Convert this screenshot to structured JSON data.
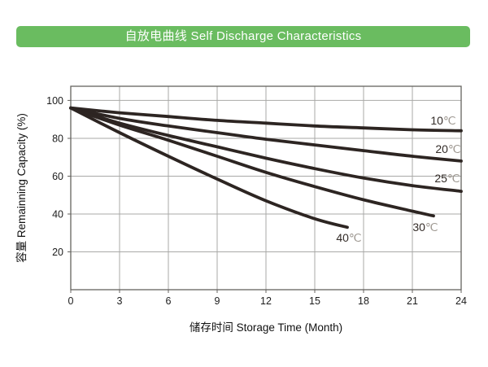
{
  "header": {
    "title": "自放电曲线 Self Discharge Characteristics"
  },
  "chart_data": {
    "type": "line",
    "title": "自放电曲线 Self Discharge Characteristics",
    "xlabel": "储存时间 Storage Time (Month)",
    "ylabel": "容量 Remainning Capacity (%)",
    "xlim": [
      0,
      24
    ],
    "ylim": [
      0,
      107.5
    ],
    "x_ticks": [
      0,
      3,
      6,
      9,
      12,
      15,
      18,
      21,
      24
    ],
    "y_ticks": [
      20,
      40,
      60,
      80,
      100
    ],
    "grid": true,
    "legend_position": "inline-end-labels",
    "colors": {
      "header_bg": "#6abc60",
      "header_text": "#ffffff",
      "curve": "#2d2522",
      "grid": "#a9a9a7",
      "frame": "#65635f",
      "tick_text": "#1c1c1c",
      "axis_title_text": "#111111",
      "label_main": "#332c28",
      "label_unit": "#9c968f"
    },
    "series": [
      {
        "name": "10℃",
        "x": [
          0,
          3,
          6,
          9,
          12,
          15,
          18,
          21,
          24
        ],
        "y": [
          96,
          93.5,
          91.5,
          89.5,
          88,
          86.5,
          85.5,
          84.5,
          84
        ],
        "label_at": [
          22.9,
          89.4
        ]
      },
      {
        "name": "20℃",
        "x": [
          0,
          3,
          6,
          9,
          12,
          15,
          18,
          21,
          24
        ],
        "y": [
          96,
          90.5,
          86.5,
          83,
          79.5,
          76.5,
          73.5,
          70.5,
          68
        ],
        "label_at": [
          23.2,
          74.4
        ]
      },
      {
        "name": "25℃",
        "x": [
          0,
          3,
          6,
          9,
          12,
          15,
          18,
          21,
          24
        ],
        "y": [
          96,
          88,
          81.5,
          75.5,
          69.5,
          64,
          59,
          55,
          52
        ],
        "label_at": [
          23.15,
          58.9
        ]
      },
      {
        "name": "30℃",
        "x": [
          0,
          3,
          6,
          9,
          12,
          15,
          18,
          21,
          22.3
        ],
        "y": [
          96,
          87,
          79,
          70.5,
          62,
          54.5,
          47.5,
          41.5,
          39
        ],
        "label_at": [
          21.8,
          33.1
        ]
      },
      {
        "name": "40℃",
        "x": [
          0,
          3,
          6,
          9,
          12,
          15,
          17
        ],
        "y": [
          96,
          83,
          70.5,
          58.5,
          47,
          37.5,
          33
        ],
        "label_at": [
          17.1,
          27.5
        ]
      }
    ]
  }
}
